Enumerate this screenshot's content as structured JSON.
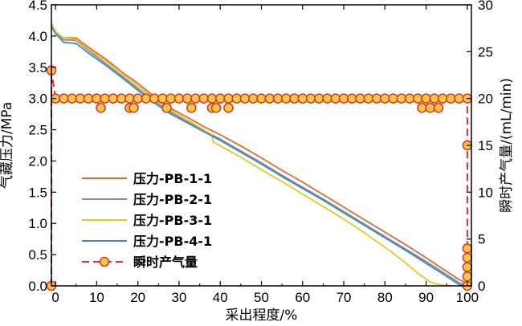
{
  "chart_data": {
    "type": "line",
    "xlabel": "采出程度/%",
    "ylabel_left": "气藏压力/MPa",
    "ylabel_right": "瞬时产气量/(mL/min)",
    "xlim": [
      -1,
      101
    ],
    "ylim_left": [
      0,
      4.5
    ],
    "ylim_right": [
      0,
      30
    ],
    "xticks": [
      "0",
      "10",
      "20",
      "30",
      "40",
      "50",
      "60",
      "70",
      "80",
      "90",
      "100"
    ],
    "yticks_left": [
      "0.0",
      "0.5",
      "1.0",
      "1.5",
      "2.0",
      "2.5",
      "3.0",
      "3.5",
      "4.0",
      "4.5"
    ],
    "yticks_right": [
      "0",
      "5",
      "10",
      "15",
      "20",
      "25",
      "30"
    ],
    "legend_position": "lower-left",
    "series": [
      {
        "name": "压力-PB-1-1",
        "color": "#E06A2E",
        "axis": "left",
        "x": [
          -1,
          0,
          2,
          5,
          8,
          12,
          16,
          20,
          24,
          28,
          32,
          36,
          40,
          45,
          50,
          55,
          60,
          65,
          70,
          75,
          80,
          85,
          90,
          95,
          98,
          100
        ],
        "y": [
          4.16,
          4.05,
          3.97,
          3.97,
          3.82,
          3.64,
          3.43,
          3.24,
          3.03,
          2.84,
          2.7,
          2.55,
          2.42,
          2.24,
          2.05,
          1.85,
          1.66,
          1.46,
          1.26,
          1.06,
          0.86,
          0.66,
          0.45,
          0.23,
          0.1,
          0.04
        ]
      },
      {
        "name": "压力-PB-2-1",
        "color": "#8C8C8C",
        "axis": "left",
        "x": [
          -1,
          0,
          2,
          5,
          8,
          12,
          16,
          20,
          24,
          28,
          32,
          36,
          40,
          45,
          50,
          55,
          60,
          65,
          70,
          75,
          80,
          85,
          90,
          95,
          98,
          100
        ],
        "y": [
          4.2,
          4.07,
          3.94,
          3.93,
          3.77,
          3.57,
          3.37,
          3.16,
          2.96,
          2.78,
          2.63,
          2.49,
          2.35,
          2.16,
          1.97,
          1.77,
          1.58,
          1.39,
          1.19,
          0.99,
          0.79,
          0.59,
          0.39,
          0.18,
          0.05,
          0.0
        ]
      },
      {
        "name": "压力-PB-3-1",
        "color": "#E8C81E",
        "axis": "left",
        "x": [
          -1,
          0,
          2,
          5,
          8,
          12,
          16,
          20,
          24,
          28,
          32,
          36,
          38,
          38.3,
          42,
          46,
          50,
          55,
          60,
          65,
          70,
          75,
          80,
          85,
          88,
          91,
          94,
          96
        ],
        "y": [
          4.18,
          4.07,
          3.97,
          3.95,
          3.79,
          3.61,
          3.41,
          3.2,
          3.0,
          2.81,
          2.66,
          2.5,
          2.42,
          2.3,
          2.17,
          2.02,
          1.86,
          1.67,
          1.47,
          1.27,
          1.07,
          0.85,
          0.62,
          0.37,
          0.2,
          0.06,
          0.01,
          0.0
        ]
      },
      {
        "name": "压力-PB-4-1",
        "color": "#3E8AC8",
        "axis": "left",
        "x": [
          -1,
          0,
          2,
          5,
          8,
          12,
          16,
          20,
          24,
          28,
          32,
          36,
          40,
          45,
          50,
          55,
          60,
          65,
          70,
          75,
          80,
          85,
          90,
          95,
          98,
          100
        ],
        "y": [
          4.15,
          4.04,
          3.9,
          3.88,
          3.73,
          3.54,
          3.34,
          3.13,
          2.93,
          2.75,
          2.61,
          2.47,
          2.33,
          2.14,
          1.95,
          1.75,
          1.56,
          1.37,
          1.17,
          0.97,
          0.77,
          0.57,
          0.36,
          0.15,
          0.02,
          0.0
        ]
      },
      {
        "name": "瞬时产气量",
        "color": "#E03030",
        "marker_fill": "#F5C842",
        "marker_edge": "#E03030",
        "axis": "right",
        "style": "dashed-with-markers",
        "x": [
          -1,
          -1,
          0,
          2,
          4,
          6,
          8,
          10,
          12,
          14,
          16,
          18,
          20,
          22,
          24,
          26,
          28,
          30,
          32,
          34,
          36,
          38,
          40,
          42,
          44,
          46,
          48,
          50,
          52,
          54,
          56,
          58,
          60,
          62,
          64,
          66,
          68,
          70,
          72,
          74,
          76,
          78,
          80,
          82,
          84,
          86,
          88,
          90,
          92,
          94,
          96,
          98,
          100,
          100,
          100,
          100,
          100,
          100,
          100
        ],
        "y": [
          0,
          23,
          20,
          20,
          20,
          20,
          20,
          20,
          20,
          20,
          20,
          20,
          20,
          20,
          20,
          20,
          20,
          20,
          20,
          20,
          20,
          20,
          20,
          20,
          20,
          20,
          20,
          20,
          20,
          20,
          20,
          20,
          20,
          20,
          20,
          20,
          20,
          20,
          20,
          20,
          20,
          20,
          20,
          20,
          20,
          20,
          20,
          20,
          20,
          20,
          20,
          20,
          20,
          15,
          4,
          3,
          2,
          1,
          0
        ]
      }
    ],
    "extra_markers": {
      "series": "瞬时产气量",
      "axis": "right",
      "points": [
        [
          11,
          19
        ],
        [
          18,
          19
        ],
        [
          19,
          19
        ],
        [
          27,
          19
        ],
        [
          33,
          19
        ],
        [
          38,
          19
        ],
        [
          39,
          19
        ],
        [
          42,
          19
        ],
        [
          89,
          19
        ],
        [
          91,
          19
        ],
        [
          93,
          19
        ]
      ]
    }
  }
}
